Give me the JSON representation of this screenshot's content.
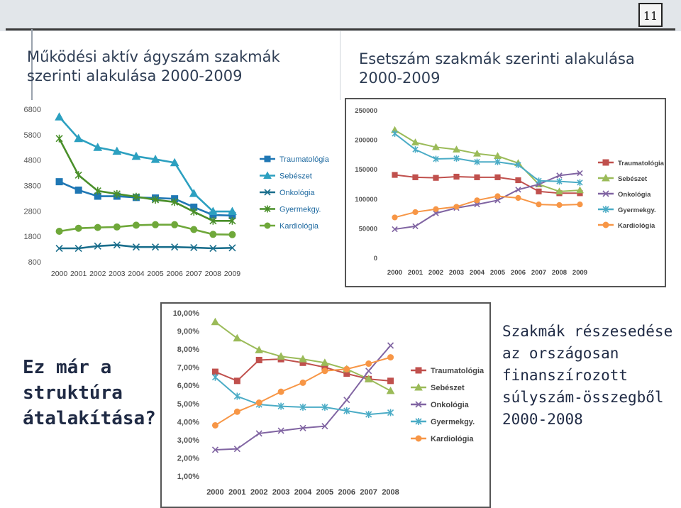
{
  "slide": {
    "page_number": "11",
    "title_left": "Működési aktív ágyszám szakmák szerinti alakulása 2000-2009",
    "title_right": "Esetszám szakmák szerinti alakulása 2000-2009",
    "question": "Ez már a struktúra átalakítása?",
    "right_text": "Szakmák részesedése az országosan finanszírozott súlyszám-összegből 2000-2008"
  },
  "colors": {
    "Traumatológia": "#c0504d",
    "Sebészet": "#9bbb59",
    "Onkológia": "#8064a2",
    "Gyermekgy.": "#4bacc6",
    "Kardiológia": "#f79646",
    "c1_Traumatológia": "#1f77b4",
    "c1_Sebészet": "#2ca0c0",
    "c1_Onkológia": "#1a6e8c",
    "c1_Gyermekgy.": "#4a8f2a",
    "c1_Kardiológia": "#6fa83a"
  },
  "chart_data": [
    {
      "type": "line",
      "title": "Működési aktív ágyszám szakmák szerinti alakulása 2000-2009",
      "xlabel": "",
      "ylabel": "",
      "x": [
        "2000",
        "2001",
        "2002",
        "2003",
        "2004",
        "2005",
        "2006",
        "2007",
        "2008",
        "2009"
      ],
      "ylim": [
        800,
        6800
      ],
      "yticks": [
        800,
        1800,
        2800,
        3800,
        4800,
        5800,
        6800
      ],
      "ytick_labels": [
        "800",
        "1800",
        "2800",
        "3800",
        "4800",
        "5800",
        "6800"
      ],
      "grid": false,
      "legend": "right",
      "series": [
        {
          "name": "Traumatológia",
          "marker": "square",
          "values": [
            3950,
            3620,
            3380,
            3380,
            3330,
            3310,
            3280,
            2950,
            2640,
            2620
          ]
        },
        {
          "name": "Sebészet",
          "marker": "triangle",
          "values": [
            6500,
            5650,
            5300,
            5150,
            4950,
            4830,
            4700,
            3490,
            2780,
            2780
          ]
        },
        {
          "name": "Onkológia",
          "marker": "x",
          "values": [
            1330,
            1330,
            1420,
            1460,
            1380,
            1380,
            1380,
            1360,
            1330,
            1350
          ]
        },
        {
          "name": "Gyermekgy.",
          "marker": "star",
          "values": [
            5650,
            4210,
            3590,
            3470,
            3360,
            3240,
            3150,
            2770,
            2410,
            2410
          ]
        },
        {
          "name": "Kardiológia",
          "marker": "circle",
          "values": [
            2000,
            2120,
            2150,
            2170,
            2240,
            2260,
            2260,
            2070,
            1880,
            1870
          ]
        }
      ]
    },
    {
      "type": "line",
      "title": "Esetszám szakmák szerinti alakulása 2000-2009",
      "xlabel": "",
      "ylabel": "",
      "x": [
        "2000",
        "2001",
        "2002",
        "2003",
        "2004",
        "2005",
        "2006",
        "2007",
        "2008",
        "2009"
      ],
      "ylim": [
        0,
        250000
      ],
      "yticks": [
        0,
        50000,
        100000,
        150000,
        200000,
        250000
      ],
      "ytick_labels": [
        "0",
        "50000",
        "100000",
        "150000",
        "200000",
        "250000"
      ],
      "grid": false,
      "legend": "right",
      "series": [
        {
          "name": "Traumatológia",
          "marker": "square",
          "values": [
            140000,
            136000,
            135000,
            137000,
            136000,
            136000,
            131000,
            112000,
            109000,
            109000
          ]
        },
        {
          "name": "Sebészet",
          "marker": "triangle",
          "values": [
            216000,
            195000,
            187000,
            183000,
            176000,
            172000,
            160000,
            124000,
            112000,
            114000
          ]
        },
        {
          "name": "Onkológia",
          "marker": "x",
          "values": [
            48000,
            53000,
            75000,
            84000,
            90000,
            97000,
            115000,
            124000,
            139000,
            143000
          ]
        },
        {
          "name": "Gyermekgy.",
          "marker": "star",
          "values": [
            210000,
            183000,
            167000,
            168000,
            162000,
            162000,
            157000,
            130000,
            129000,
            127000
          ]
        },
        {
          "name": "Kardiológia",
          "marker": "circle",
          "values": [
            68000,
            77000,
            82000,
            86000,
            97000,
            104000,
            101000,
            90000,
            89000,
            90000
          ]
        }
      ]
    },
    {
      "type": "line",
      "title": "Szakmák részesedése az országosan finanszírozott súlyszám-összegből 2000-2008",
      "xlabel": "",
      "ylabel": "",
      "x": [
        "2000",
        "2001",
        "2002",
        "2003",
        "2004",
        "2005",
        "2006",
        "2007",
        "2008"
      ],
      "ylim": [
        1,
        10
      ],
      "yticks": [
        1,
        2,
        3,
        4,
        5,
        6,
        7,
        8,
        9,
        10
      ],
      "ytick_labels": [
        "1,00%",
        "2,00%",
        "3,00%",
        "4,00%",
        "5,00%",
        "6,00%",
        "7,00%",
        "8,00%",
        "9,00%",
        "10,00%"
      ],
      "grid": false,
      "legend": "right",
      "series": [
        {
          "name": "Traumatológia",
          "marker": "square",
          "values": [
            6.75,
            6.25,
            7.4,
            7.45,
            7.25,
            7.0,
            6.65,
            6.35,
            6.25
          ]
        },
        {
          "name": "Sebészet",
          "marker": "triangle",
          "values": [
            9.5,
            8.6,
            7.95,
            7.6,
            7.45,
            7.25,
            6.9,
            6.35,
            5.7
          ]
        },
        {
          "name": "Onkológia",
          "marker": "x",
          "values": [
            2.45,
            2.5,
            3.35,
            3.5,
            3.65,
            3.75,
            5.2,
            6.8,
            8.2
          ]
        },
        {
          "name": "Gyermekgy.",
          "marker": "star",
          "values": [
            6.45,
            5.4,
            4.95,
            4.85,
            4.8,
            4.8,
            4.6,
            4.4,
            4.5
          ]
        },
        {
          "name": "Kardiológia",
          "marker": "circle",
          "values": [
            3.8,
            4.55,
            5.05,
            5.65,
            6.15,
            6.8,
            6.9,
            7.2,
            7.55
          ]
        }
      ]
    }
  ]
}
